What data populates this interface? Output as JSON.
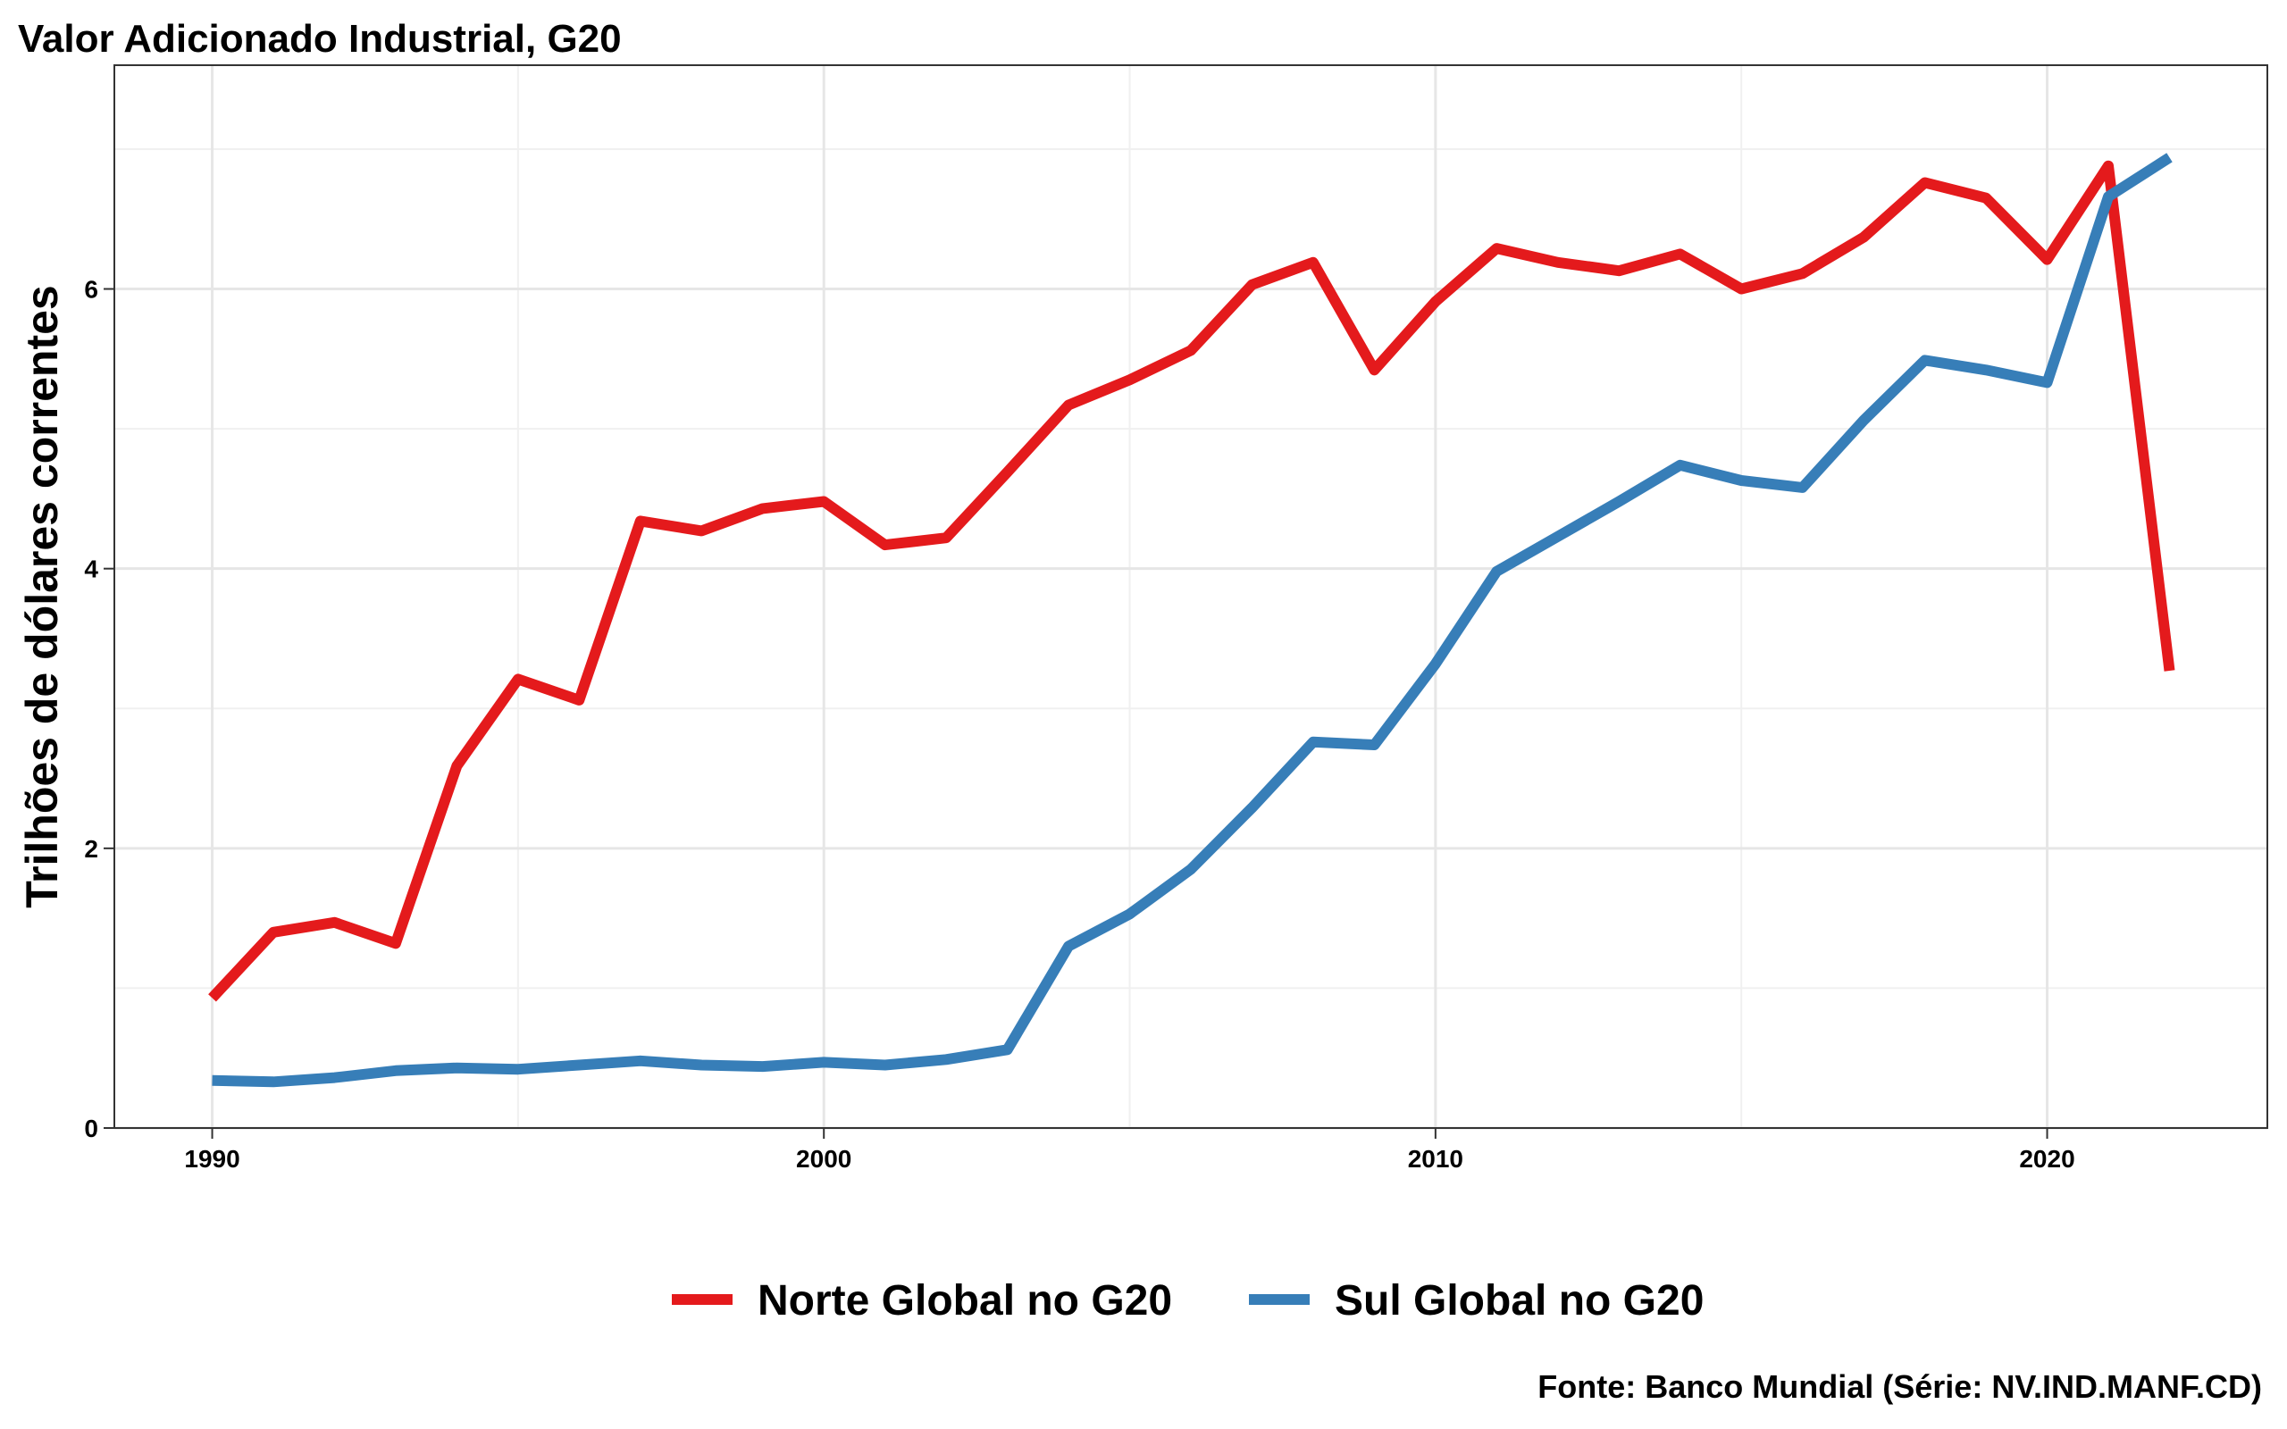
{
  "chart_data": {
    "type": "line",
    "title": "Valor Adicionado Industrial, G20",
    "xlabel": "",
    "ylabel": "Trilhões de dólares correntes",
    "caption": "Fonte: Banco Mundial (Série: NV.IND.MANF.CD)",
    "xlim": [
      1988.4,
      2023.6
    ],
    "ylim": [
      0,
      7.6
    ],
    "x_ticks": [
      1990,
      2000,
      2010,
      2020
    ],
    "y_ticks": [
      0,
      2,
      4,
      6
    ],
    "x_tick_labels": [
      "1990",
      "2000",
      "2010",
      "2020"
    ],
    "y_tick_labels": [
      "0",
      "2",
      "4",
      "6"
    ],
    "grid": true,
    "legend_position": "bottom",
    "x": [
      1990,
      1991,
      1992,
      1993,
      1994,
      1995,
      1996,
      1997,
      1998,
      1999,
      2000,
      2001,
      2002,
      2003,
      2004,
      2005,
      2006,
      2007,
      2008,
      2009,
      2010,
      2011,
      2012,
      2013,
      2014,
      2015,
      2016,
      2017,
      2018,
      2019,
      2020,
      2021,
      2022
    ],
    "series": [
      {
        "name": "Norte Global no G20",
        "color": "#e41a1c",
        "values": [
          0.93,
          1.4,
          1.47,
          1.32,
          2.59,
          3.21,
          3.06,
          4.34,
          4.27,
          4.43,
          4.48,
          4.17,
          4.22,
          4.69,
          5.17,
          5.35,
          5.56,
          6.03,
          6.19,
          5.42,
          5.91,
          6.29,
          6.19,
          6.13,
          6.25,
          6.0,
          6.11,
          6.37,
          6.76,
          6.65,
          6.21,
          6.88,
          3.27
        ]
      },
      {
        "name": "Sul Global no G20",
        "color": "#377eb8",
        "values": [
          0.34,
          0.33,
          0.36,
          0.41,
          0.43,
          0.42,
          0.45,
          0.48,
          0.45,
          0.44,
          0.47,
          0.45,
          0.49,
          0.56,
          1.3,
          1.53,
          1.85,
          2.29,
          2.76,
          2.74,
          3.32,
          3.98,
          4.23,
          4.48,
          4.74,
          4.63,
          4.58,
          5.06,
          5.49,
          5.42,
          5.33,
          6.66,
          6.94
        ]
      }
    ]
  }
}
